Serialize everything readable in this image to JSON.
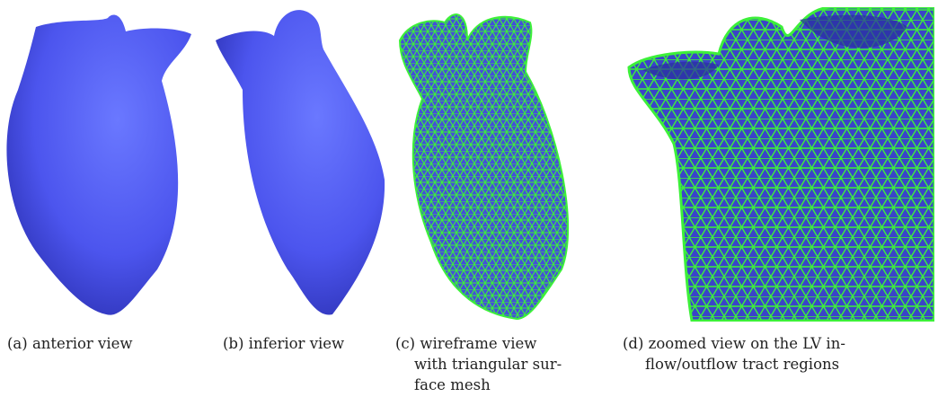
{
  "panels": [
    {
      "caption_lines": [
        "(a) anterior view"
      ]
    },
    {
      "caption_lines": [
        "(b) inferior view"
      ]
    },
    {
      "caption_lines": [
        "(c) wireframe view",
        "with triangular sur-",
        "face mesh"
      ]
    },
    {
      "caption_lines": [
        "(d) zoomed view on the LV in-",
        "flow/outflow tract regions"
      ]
    }
  ]
}
